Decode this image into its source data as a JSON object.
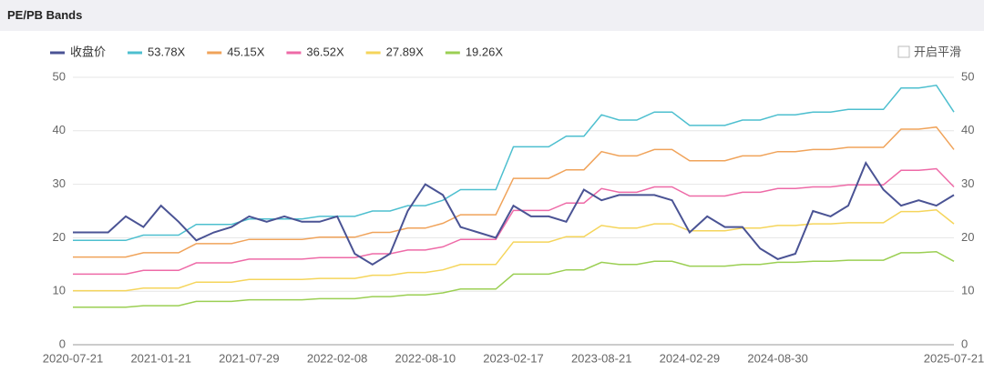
{
  "header": {
    "title": "PE/PB Bands"
  },
  "toggle": {
    "label": "开启平滑"
  },
  "chart_data": {
    "type": "line",
    "categories": [
      "2020-07-21",
      null,
      null,
      null,
      null,
      "2021-01-21",
      null,
      null,
      null,
      null,
      "2021-07-29",
      null,
      null,
      null,
      null,
      "2022-02-08",
      null,
      null,
      null,
      null,
      "2022-08-10",
      null,
      null,
      null,
      null,
      "2023-02-17",
      null,
      null,
      null,
      null,
      "2023-08-21",
      null,
      null,
      null,
      null,
      "2024-02-29",
      null,
      null,
      null,
      null,
      "2024-08-30",
      null,
      null,
      null,
      null,
      null,
      null,
      null,
      null,
      null,
      "2025-07-21"
    ],
    "ylim": [
      0,
      50
    ],
    "yticks": [
      0,
      10,
      20,
      30,
      40,
      50
    ],
    "y2lim": [
      0,
      50
    ],
    "y2ticks": [
      0,
      10,
      20,
      30,
      40,
      50
    ],
    "grid": true,
    "legend": "top-left",
    "series": [
      {
        "name": "收盘价",
        "color": "#4a5394",
        "values": [
          21,
          21,
          21,
          24,
          22,
          26,
          23,
          19.5,
          21,
          22,
          24,
          23,
          24,
          23,
          23,
          24,
          17,
          15,
          17,
          25,
          30,
          28,
          22,
          21,
          20,
          26,
          24,
          24,
          23,
          29,
          27,
          28,
          28,
          28,
          27,
          21,
          24,
          22,
          22,
          18,
          16,
          17,
          25,
          24,
          26,
          34,
          29,
          26,
          27,
          26,
          28
        ]
      },
      {
        "name": "53.78X",
        "color": "#4dbfcf",
        "values": [
          19.5,
          19.5,
          19.5,
          19.5,
          20.5,
          20.5,
          20.5,
          22.5,
          22.5,
          22.5,
          23.5,
          23.5,
          23.5,
          23.5,
          24,
          24,
          24,
          25,
          25,
          26,
          26,
          27,
          29,
          29,
          29,
          37,
          37,
          37,
          39,
          39,
          43,
          42,
          42,
          43.5,
          43.5,
          41,
          41,
          41,
          42,
          42,
          43,
          43,
          43.5,
          43.5,
          44,
          44,
          44,
          48,
          48,
          48.5,
          43.5
        ]
      },
      {
        "name": "45.15X",
        "color": "#f0a35a",
        "values": [
          16.4,
          16.4,
          16.4,
          16.4,
          17.2,
          17.2,
          17.2,
          18.9,
          18.9,
          18.9,
          19.7,
          19.7,
          19.7,
          19.7,
          20.1,
          20.1,
          20.1,
          21.0,
          21.0,
          21.8,
          21.8,
          22.7,
          24.3,
          24.3,
          24.3,
          31.1,
          31.1,
          31.1,
          32.7,
          32.7,
          36.1,
          35.3,
          35.3,
          36.5,
          36.5,
          34.4,
          34.4,
          34.4,
          35.3,
          35.3,
          36.1,
          36.1,
          36.5,
          36.5,
          36.9,
          36.9,
          36.9,
          40.3,
          40.3,
          40.7,
          36.5
        ]
      },
      {
        "name": "36.52X",
        "color": "#ee6aa7",
        "values": [
          13.2,
          13.2,
          13.2,
          13.2,
          13.9,
          13.9,
          13.9,
          15.3,
          15.3,
          15.3,
          16.0,
          16.0,
          16.0,
          16.0,
          16.3,
          16.3,
          16.3,
          17.0,
          17.0,
          17.7,
          17.7,
          18.3,
          19.7,
          19.7,
          19.7,
          25.1,
          25.1,
          25.1,
          26.5,
          26.5,
          29.2,
          28.5,
          28.5,
          29.5,
          29.5,
          27.8,
          27.8,
          27.8,
          28.5,
          28.5,
          29.2,
          29.2,
          29.5,
          29.5,
          29.9,
          29.9,
          29.9,
          32.6,
          32.6,
          32.9,
          29.5
        ]
      },
      {
        "name": "27.89X",
        "color": "#f5d55b",
        "values": [
          10.1,
          10.1,
          10.1,
          10.1,
          10.6,
          10.6,
          10.6,
          11.7,
          11.7,
          11.7,
          12.2,
          12.2,
          12.2,
          12.2,
          12.4,
          12.4,
          12.4,
          13.0,
          13.0,
          13.5,
          13.5,
          14.0,
          15.0,
          15.0,
          15.0,
          19.2,
          19.2,
          19.2,
          20.2,
          20.2,
          22.3,
          21.8,
          21.8,
          22.6,
          22.6,
          21.3,
          21.3,
          21.3,
          21.8,
          21.8,
          22.3,
          22.3,
          22.6,
          22.6,
          22.8,
          22.8,
          22.8,
          24.9,
          24.9,
          25.2,
          22.6
        ]
      },
      {
        "name": "19.26X",
        "color": "#9bcf53",
        "values": [
          7.0,
          7.0,
          7.0,
          7.0,
          7.3,
          7.3,
          7.3,
          8.1,
          8.1,
          8.1,
          8.4,
          8.4,
          8.4,
          8.4,
          8.6,
          8.6,
          8.6,
          9.0,
          9.0,
          9.3,
          9.3,
          9.7,
          10.4,
          10.4,
          10.4,
          13.2,
          13.2,
          13.2,
          14.0,
          14.0,
          15.4,
          15.0,
          15.0,
          15.6,
          15.6,
          14.7,
          14.7,
          14.7,
          15.0,
          15.0,
          15.4,
          15.4,
          15.6,
          15.6,
          15.8,
          15.8,
          15.8,
          17.2,
          17.2,
          17.4,
          15.6
        ]
      }
    ]
  }
}
